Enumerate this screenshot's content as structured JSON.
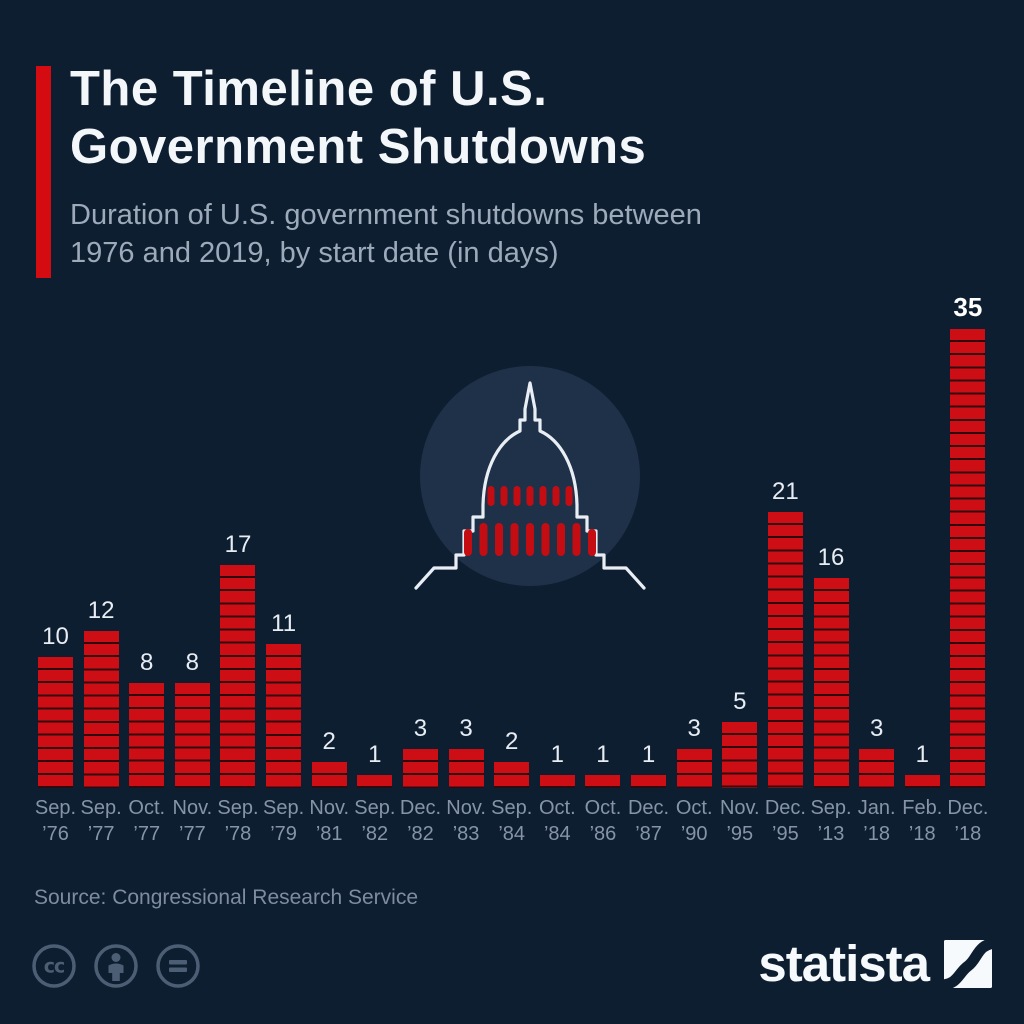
{
  "header": {
    "title_line1": "The Timeline of U.S.",
    "title_line2": "Government Shutdowns",
    "subtitle_line1": "Duration of U.S. government shutdowns between",
    "subtitle_line2": "1976 and 2019, by start date (in days)"
  },
  "chart_data": {
    "type": "bar",
    "title": "The Timeline of U.S. Government Shutdowns",
    "subtitle": "Duration of U.S. government shutdowns between 1976 and 2019, by start date (in days)",
    "unit": "days",
    "ylim": [
      0,
      35
    ],
    "grid": false,
    "legend": false,
    "value_labels": true,
    "bar_color": "#cd0e14",
    "emphasized_index": 20,
    "categories": [
      "Sep. ’76",
      "Sep. ’77",
      "Oct. ’77",
      "Nov. ’77",
      "Sep. ’78",
      "Sep. ’79",
      "Nov. ’81",
      "Sep. ’82",
      "Dec. ’82",
      "Nov. ’83",
      "Sep. ’84",
      "Oct. ’84",
      "Oct. ’86",
      "Dec. ’87",
      "Oct. ’90",
      "Nov. ’95",
      "Dec. ’95",
      "Sep. ’13",
      "Jan. ’18",
      "Feb. ’18",
      "Dec. ’18"
    ],
    "values": [
      10,
      12,
      8,
      8,
      17,
      11,
      2,
      1,
      3,
      3,
      2,
      1,
      1,
      1,
      3,
      5,
      21,
      16,
      3,
      1,
      35
    ],
    "points": [
      {
        "month": "Sep.",
        "year": "’76",
        "value": 10
      },
      {
        "month": "Sep.",
        "year": "’77",
        "value": 12
      },
      {
        "month": "Oct.",
        "year": "’77",
        "value": 8
      },
      {
        "month": "Nov.",
        "year": "’77",
        "value": 8
      },
      {
        "month": "Sep.",
        "year": "’78",
        "value": 17
      },
      {
        "month": "Sep.",
        "year": "’79",
        "value": 11
      },
      {
        "month": "Nov.",
        "year": "’81",
        "value": 2
      },
      {
        "month": "Sep.",
        "year": "’82",
        "value": 1
      },
      {
        "month": "Dec.",
        "year": "’82",
        "value": 3
      },
      {
        "month": "Nov.",
        "year": "’83",
        "value": 3
      },
      {
        "month": "Sep.",
        "year": "’84",
        "value": 2
      },
      {
        "month": "Oct.",
        "year": "’84",
        "value": 1
      },
      {
        "month": "Oct.",
        "year": "’86",
        "value": 1
      },
      {
        "month": "Dec.",
        "year": "’87",
        "value": 1
      },
      {
        "month": "Oct.",
        "year": "’90",
        "value": 3
      },
      {
        "month": "Nov.",
        "year": "’95",
        "value": 5
      },
      {
        "month": "Dec.",
        "year": "’95",
        "value": 21
      },
      {
        "month": "Sep.",
        "year": "’13",
        "value": 16
      },
      {
        "month": "Jan.",
        "year": "’18",
        "value": 3
      },
      {
        "month": "Feb.",
        "year": "’18",
        "value": 1
      },
      {
        "month": "Dec.",
        "year": "’18",
        "value": 35
      }
    ]
  },
  "watermark": {
    "icon": "capitol-building-icon"
  },
  "footer": {
    "source": "Source: Congressional Research Service",
    "license_icons": [
      "cc-icon",
      "attribution-person-icon",
      "equals-icon"
    ],
    "brand": "statista",
    "brand_icon": "statista-s-curve-icon"
  },
  "colors": {
    "background": "#0e1e31",
    "bar_red": "#cd0e14",
    "accent_red": "#d50b12",
    "watermark_circle": "#1e3148",
    "capitol_outline": "#e9eef4",
    "title_text": "#f4f7fa",
    "subtitle_text": "#9daaba",
    "axis_text": "#8694a7",
    "value_text": "#e8edf3",
    "source_text": "#7e8c9e",
    "license_icon": "#4c5e73"
  }
}
